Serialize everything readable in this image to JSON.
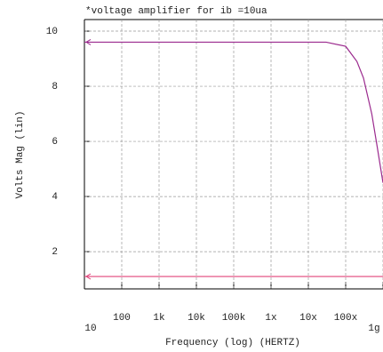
{
  "chart_data": {
    "type": "line",
    "title": "*voltage amplifier for ib =10ua",
    "x_label": "Frequency (log) (HERTZ)",
    "y_label": "Volts Mag (lin)",
    "x": [
      10,
      10000000,
      30000000,
      100000000,
      200000000,
      300000000,
      500000000,
      700000000,
      1000000000
    ],
    "series": [
      {
        "color": "#9b2a8e",
        "values": [
          9.6,
          9.6,
          9.6,
          9.45,
          8.9,
          8.3,
          7.0,
          5.8,
          4.5
        ]
      },
      {
        "color": "#e0447a",
        "values": [
          1.1,
          1.1,
          1.1,
          1.1,
          1.1,
          1.1,
          1.1,
          1.1,
          1.1
        ]
      }
    ],
    "xlog": true,
    "xlim": [
      10,
      1000000000
    ],
    "xticks": [
      10,
      100,
      {
        "value": 1000,
        "label": "1k"
      },
      {
        "value": 10000,
        "label": "10k"
      },
      {
        "value": 100000,
        "label": "100k"
      },
      {
        "value": 1000000,
        "label": "1x"
      },
      {
        "value": 10000000,
        "label": "10x"
      },
      {
        "value": 100000000,
        "label": "100x"
      },
      {
        "value": 1000000000,
        "label": "1g"
      }
    ],
    "ylim": [
      0.65,
      10.42
    ],
    "yticks": [
      2,
      4,
      6,
      8,
      10
    ],
    "grid": true
  }
}
